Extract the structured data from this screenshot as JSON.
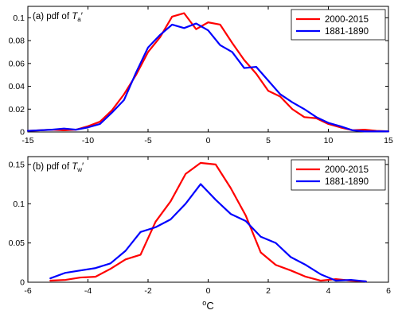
{
  "xlabel_unit": "C",
  "xlabel_degree": "o",
  "chart_data": [
    {
      "type": "line",
      "panel_label": "(a) pdf of ",
      "panel_var": "T",
      "panel_sub": "a",
      "panel_prime": "′",
      "xlim": [
        -15,
        15
      ],
      "ylim": [
        0,
        0.11
      ],
      "xticks": [
        -15,
        -10,
        -5,
        0,
        5,
        10,
        15
      ],
      "yticks": [
        0,
        0.02,
        0.04,
        0.06,
        0.08,
        0.1
      ],
      "xtick_labels": [
        "-15",
        "-10",
        "-5",
        "0",
        "5",
        "10",
        "15"
      ],
      "ytick_labels": [
        "0",
        "0.02",
        "0.04",
        "0.06",
        "0.08",
        "0.1"
      ],
      "legend_position": "top-right",
      "series": [
        {
          "name": "2000-2015",
          "color": "#ff0000",
          "x": [
            -15,
            -14,
            -13,
            -12,
            -11,
            -10,
            -9,
            -8,
            -7,
            -6,
            -5,
            -4,
            -3,
            -2,
            -1,
            0,
            1,
            2,
            3,
            4,
            5,
            6,
            7,
            8,
            9,
            10,
            11,
            12,
            13,
            14,
            15
          ],
          "y": [
            0.001,
            0.0015,
            0.002,
            0.0015,
            0.002,
            0.005,
            0.009,
            0.019,
            0.033,
            0.05,
            0.07,
            0.083,
            0.101,
            0.104,
            0.09,
            0.096,
            0.094,
            0.078,
            0.063,
            0.051,
            0.036,
            0.031,
            0.02,
            0.013,
            0.012,
            0.007,
            0.004,
            0.0015,
            0.002,
            0.001,
            0.0005
          ]
        },
        {
          "name": "1881-1890",
          "color": "#0000ff",
          "x": [
            -15,
            -14,
            -13,
            -12,
            -11,
            -10,
            -9,
            -8,
            -7,
            -6,
            -5,
            -4,
            -3,
            -2,
            -1,
            0,
            1,
            2,
            3,
            4,
            5,
            6,
            7,
            8,
            9,
            10,
            11,
            12,
            13,
            14,
            15
          ],
          "y": [
            0.001,
            0.0015,
            0.002,
            0.003,
            0.002,
            0.004,
            0.007,
            0.017,
            0.028,
            0.052,
            0.074,
            0.085,
            0.094,
            0.091,
            0.095,
            0.089,
            0.076,
            0.07,
            0.056,
            0.057,
            0.045,
            0.033,
            0.026,
            0.02,
            0.013,
            0.008,
            0.005,
            0.0015,
            0.0005,
            0.0005,
            0.0005
          ]
        }
      ]
    },
    {
      "type": "line",
      "panel_label": "(b) pdf of ",
      "panel_var": "T",
      "panel_sub": "w",
      "panel_prime": "′",
      "xlim": [
        -6,
        6
      ],
      "ylim": [
        0,
        0.16
      ],
      "xticks": [
        -6,
        -4,
        -2,
        0,
        2,
        4,
        6
      ],
      "yticks": [
        0,
        0.05,
        0.1,
        0.15
      ],
      "xtick_labels": [
        "-6",
        "-4",
        "-2",
        "0",
        "2",
        "4",
        "6"
      ],
      "ytick_labels": [
        "0",
        "0.05",
        "0.1",
        "0.15"
      ],
      "legend_position": "top-right",
      "series": [
        {
          "name": "2000-2015",
          "color": "#ff0000",
          "x": [
            -5.25,
            -4.75,
            -4.25,
            -3.75,
            -3.25,
            -2.75,
            -2.25,
            -1.75,
            -1.25,
            -0.75,
            -0.25,
            0.25,
            0.75,
            1.25,
            1.75,
            2.25,
            2.75,
            3.25,
            3.75,
            4.25,
            4.75,
            5.25
          ],
          "y": [
            0.002,
            0.003,
            0.006,
            0.007,
            0.017,
            0.029,
            0.035,
            0.077,
            0.103,
            0.138,
            0.152,
            0.15,
            0.12,
            0.085,
            0.038,
            0.022,
            0.015,
            0.007,
            0.002,
            0.004,
            0.002,
            0.001
          ]
        },
        {
          "name": "1881-1890",
          "color": "#0000ff",
          "x": [
            -5.25,
            -4.75,
            -4.25,
            -3.75,
            -3.25,
            -2.75,
            -2.25,
            -1.75,
            -1.25,
            -0.75,
            -0.25,
            0.25,
            0.75,
            1.25,
            1.75,
            2.25,
            2.75,
            3.25,
            3.75,
            4.25,
            4.75,
            5.25
          ],
          "y": [
            0.005,
            0.012,
            0.015,
            0.018,
            0.024,
            0.04,
            0.064,
            0.07,
            0.08,
            0.1,
            0.125,
            0.105,
            0.087,
            0.078,
            0.058,
            0.05,
            0.032,
            0.022,
            0.01,
            0.002,
            0.003,
            0.001
          ]
        }
      ]
    }
  ]
}
